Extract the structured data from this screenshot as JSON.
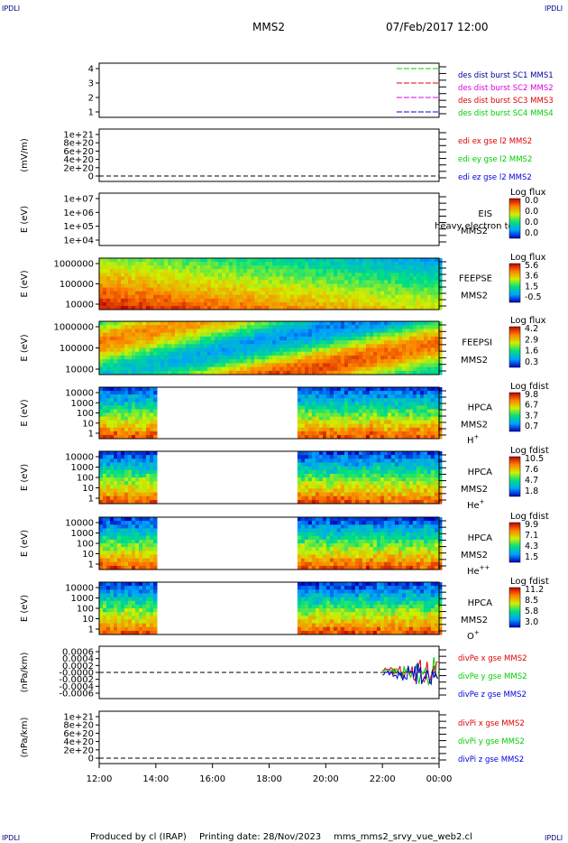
{
  "header": {
    "corner_left_top": "IPDLI",
    "corner_right_top": "IPDLI",
    "spacecraft": "MMS2",
    "date_time": "07/Feb/2017 12:00",
    "corner_left_bottom": "IPDLI",
    "corner_right_bottom": "IPDLI"
  },
  "footer": {
    "produced_by": "Produced by cl (IRAP)",
    "printing_date": "Printing date: 28/Nov/2023",
    "filename": "mms_mms2_srvy_vue_web2.cl"
  },
  "time_axis": {
    "ticks": [
      "12:00",
      "14:00",
      "16:00",
      "18:00",
      "20:00",
      "22:00",
      "00:00"
    ],
    "start_hour": 12,
    "end_hour": 24
  },
  "colors": {
    "red": "#e00000",
    "green": "#00cc00",
    "blue": "#0000dd",
    "magenta": "#dd00dd",
    "navy": "#000099"
  },
  "chart_data": [
    {
      "type": "line",
      "panel": "des-dist-burst",
      "ylabel": "",
      "ylim": [
        0.5,
        4.5
      ],
      "yticks": [
        "4",
        "3",
        "2",
        "1"
      ],
      "series": [
        {
          "name": "des dist burst SC1 MMS1",
          "color": "#00cc00",
          "y": 4,
          "x": [
            22.5,
            24
          ]
        },
        {
          "name": "des dist burst SC2 MMS2",
          "color": "#e00000",
          "y": 3,
          "x": [
            22.5,
            24
          ]
        },
        {
          "name": "des dist burst SC3 MMS3",
          "color": "#dd00dd",
          "y": 2,
          "x": [
            22.5,
            24
          ]
        },
        {
          "name": "des dist burst SC4 MMS4",
          "color": "#0000dd",
          "y": 1,
          "x": [
            22.5,
            24
          ]
        }
      ],
      "legend_colors": [
        "#000099",
        "#dd00dd",
        "#e00000",
        "#00cc00"
      ]
    },
    {
      "type": "line",
      "panel": "edi-e",
      "ylabel": "(mV/m)",
      "yticks": [
        "1e+21",
        "8e+20",
        "6e+20",
        "4e+20",
        "2e+20",
        "0"
      ],
      "series": [
        {
          "name": "edi ex gse l2 MMS2",
          "color": "#e00000"
        },
        {
          "name": "edi ey gse l2 MMS2",
          "color": "#00cc00"
        },
        {
          "name": "edi ez gse l2 MMS2",
          "color": "#0000dd"
        }
      ]
    },
    {
      "type": "heatmap",
      "panel": "eis",
      "ylabel": "E (eV)",
      "yticks": [
        "1e+07",
        "1e+06",
        "1e+05",
        "1e+04"
      ],
      "instrument": "EIS",
      "spacecraft": "MMS2",
      "overlay_text": "heavy electron to",
      "colorbar_title": "Log flux",
      "colorbar_ticks": [
        "0.0",
        "0.0",
        "0.0",
        "0.0"
      ]
    },
    {
      "type": "heatmap",
      "panel": "feepse",
      "ylabel": "E (eV)",
      "yticks": [
        "1000000",
        "100000",
        "10000"
      ],
      "instrument": "FEEPSE",
      "spacecraft": "MMS2",
      "colorbar_title": "Log flux",
      "colorbar_ticks": [
        "5.6",
        "3.6",
        "1.5",
        "-0.5"
      ],
      "data_coverage_hours": [
        [
          12,
          24
        ]
      ]
    },
    {
      "type": "heatmap",
      "panel": "feepsi",
      "ylabel": "E (eV)",
      "yticks": [
        "1000000",
        "100000",
        "10000"
      ],
      "instrument": "FEEPSI",
      "spacecraft": "MMS2",
      "colorbar_title": "Log flux",
      "colorbar_ticks": [
        "4.2",
        "2.9",
        "1.6",
        "0.3"
      ],
      "data_coverage_hours": [
        [
          12,
          24
        ]
      ]
    },
    {
      "type": "heatmap",
      "panel": "hpca-h",
      "ylabel": "E (eV)",
      "yticks": [
        "10000",
        "1000",
        "100",
        "10",
        "1"
      ],
      "instrument": "HPCA",
      "spacecraft": "MMS2",
      "species": "H",
      "species_sup": "+",
      "colorbar_title": "Log fdist",
      "colorbar_ticks": [
        "9.8",
        "6.7",
        "3.7",
        "0.7"
      ],
      "data_coverage_hours": [
        [
          12,
          14
        ],
        [
          19,
          24
        ]
      ]
    },
    {
      "type": "heatmap",
      "panel": "hpca-he",
      "ylabel": "E (eV)",
      "yticks": [
        "10000",
        "1000",
        "100",
        "10",
        "1"
      ],
      "instrument": "HPCA",
      "spacecraft": "MMS2",
      "species": "He",
      "species_sup": "+",
      "colorbar_title": "Log fdist",
      "colorbar_ticks": [
        "10.5",
        "7.6",
        "4.7",
        "1.8"
      ],
      "data_coverage_hours": [
        [
          12,
          14
        ],
        [
          19,
          24
        ]
      ]
    },
    {
      "type": "heatmap",
      "panel": "hpca-hepp",
      "ylabel": "E (eV)",
      "yticks": [
        "10000",
        "1000",
        "100",
        "10",
        "1"
      ],
      "instrument": "HPCA",
      "spacecraft": "MMS2",
      "species": "He",
      "species_sup": "++",
      "colorbar_title": "Log fdist",
      "colorbar_ticks": [
        "9.9",
        "7.1",
        "4.3",
        "1.5"
      ],
      "data_coverage_hours": [
        [
          12,
          14
        ],
        [
          19,
          24
        ]
      ]
    },
    {
      "type": "heatmap",
      "panel": "hpca-o",
      "ylabel": "E (eV)",
      "yticks": [
        "10000",
        "1000",
        "100",
        "10",
        "1"
      ],
      "instrument": "HPCA",
      "spacecraft": "MMS2",
      "species": "O",
      "species_sup": "+",
      "colorbar_title": "Log fdist",
      "colorbar_ticks": [
        "11.2",
        "8.5",
        "5.8",
        "3.0"
      ],
      "data_coverage_hours": [
        [
          12,
          14
        ],
        [
          19,
          24
        ]
      ]
    },
    {
      "type": "line",
      "panel": "divpe",
      "ylabel": "(nPa/km)",
      "ylim": [
        -0.0007,
        0.0007
      ],
      "yticks": [
        "0.0006",
        "0.0004",
        "0.0002",
        "-0.0000",
        "-0.0002",
        "-0.0004",
        "-0.0006"
      ],
      "series": [
        {
          "name": "divPe x gse MMS2",
          "color": "#e00000"
        },
        {
          "name": "divPe y gse MMS2",
          "color": "#00cc00"
        },
        {
          "name": "divPe z gse MMS2",
          "color": "#0000dd"
        }
      ],
      "data_coverage_hours": [
        [
          22,
          24
        ]
      ]
    },
    {
      "type": "line",
      "panel": "divpi",
      "ylabel": "(nPa/km)",
      "yticks": [
        "1e+21",
        "8e+20",
        "6e+20",
        "4e+20",
        "2e+20",
        "0"
      ],
      "series": [
        {
          "name": "divPi x gse MMS2",
          "color": "#e00000"
        },
        {
          "name": "divPi y gse MMS2",
          "color": "#00cc00"
        },
        {
          "name": "divPi z gse MMS2",
          "color": "#0000dd"
        }
      ]
    }
  ]
}
